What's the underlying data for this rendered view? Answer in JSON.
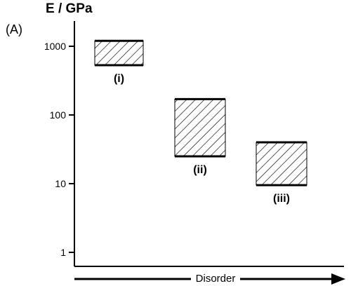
{
  "chart_data": {
    "type": "bar",
    "panel_label": "(A)",
    "ylabel": "E / GPa",
    "xlabel": "Disorder",
    "yscale": "log",
    "ylim": [
      1,
      2000
    ],
    "yticks": [
      1,
      10,
      100,
      1000
    ],
    "ytick_labels": [
      "1",
      "10",
      "100",
      "1000"
    ],
    "grid": false,
    "bars": [
      {
        "label": "(i)",
        "low": 530,
        "high": 1200
      },
      {
        "label": "(ii)",
        "low": 25,
        "high": 170
      },
      {
        "label": "(iii)",
        "low": 9.5,
        "high": 40
      }
    ]
  }
}
